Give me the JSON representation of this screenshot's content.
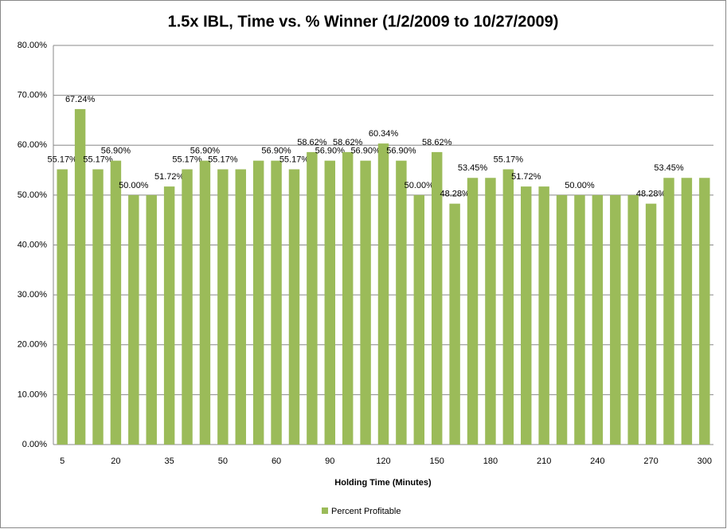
{
  "chart_data": {
    "type": "bar",
    "title": "1.5x IBL, Time vs. % Winner (1/2/2009 to 10/27/2009)",
    "x_label": "Holding Time (Minutes)",
    "categories": [
      "5",
      null,
      null,
      "20",
      null,
      null,
      "35",
      null,
      null,
      "50",
      null,
      null,
      "60",
      null,
      null,
      "90",
      null,
      null,
      "120",
      null,
      null,
      "150",
      null,
      null,
      "180",
      null,
      null,
      "210",
      null,
      null,
      "240",
      null,
      null,
      "270",
      null,
      null,
      "300"
    ],
    "series": [
      {
        "name": "Percent Profitable",
        "color": "#9bbb59",
        "values": [
          55.17,
          67.24,
          55.17,
          56.9,
          50.0,
          50.0,
          51.72,
          55.17,
          56.9,
          55.17,
          55.17,
          56.9,
          56.9,
          55.17,
          58.62,
          56.9,
          58.62,
          56.9,
          60.34,
          56.9,
          50.0,
          58.62,
          48.28,
          53.45,
          53.45,
          55.17,
          51.72,
          51.72,
          50.0,
          50.0,
          50.0,
          50.0,
          50.0,
          48.28,
          53.45,
          53.45,
          53.45
        ],
        "value_labels": [
          "55.17%",
          "67.24%",
          "55.17%",
          "56.90%",
          "50.00%",
          null,
          "51.72%",
          "55.17%",
          "56.90%",
          "55.17%",
          null,
          null,
          "56.90%",
          "55.17%",
          "58.62%",
          "56.90%",
          "58.62%",
          "56.90%",
          "60.34%",
          "56.90%",
          "50.00%",
          "58.62%",
          "48.28%",
          "53.45%",
          null,
          "55.17%",
          "51.72%",
          null,
          null,
          "50.00%",
          null,
          null,
          null,
          "48.28%",
          "53.45%",
          null,
          null
        ]
      }
    ],
    "ylim": [
      0,
      80
    ],
    "yticks": [
      {
        "value": 0,
        "label": "0.00%"
      },
      {
        "value": 10,
        "label": "10.00%"
      },
      {
        "value": 20,
        "label": "20.00%"
      },
      {
        "value": 30,
        "label": "30.00%"
      },
      {
        "value": 40,
        "label": "40.00%"
      },
      {
        "value": 50,
        "label": "50.00%"
      },
      {
        "value": 60,
        "label": "60.00%"
      },
      {
        "value": 70,
        "label": "70.00%"
      },
      {
        "value": 80,
        "label": "80.00%"
      }
    ],
    "grid": true,
    "legend": "bottom"
  }
}
